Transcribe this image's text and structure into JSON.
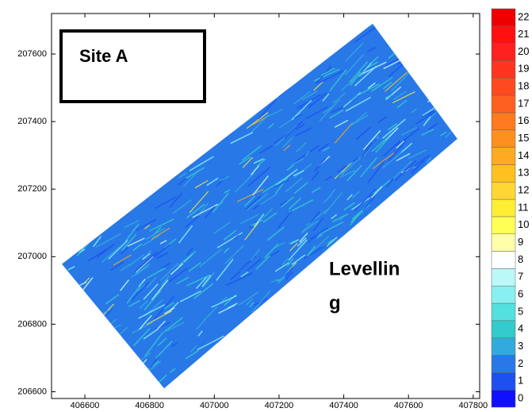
{
  "chart_data": {
    "type": "contour",
    "xlim": [
      406497,
      407820
    ],
    "ylim": [
      206580,
      207720
    ],
    "xticks": [
      406600,
      406800,
      407000,
      407200,
      407400,
      407600,
      407800
    ],
    "yticks": [
      206600,
      206800,
      207000,
      207200,
      207400,
      207600
    ],
    "field_outline": {
      "x": [
        406529,
        407489,
        407751,
        406845
      ],
      "y": [
        206978,
        207690,
        207349,
        206610
      ]
    },
    "annotations": [
      "Site A",
      "Levellin",
      "g"
    ],
    "colorbar": {
      "lim": [
        0,
        23
      ],
      "ticks": [
        0,
        1,
        2,
        3,
        4,
        5,
        6,
        7,
        8,
        9,
        10,
        11,
        12,
        13,
        14,
        15,
        16,
        17,
        18,
        19,
        20,
        21,
        22
      ],
      "colors": [
        "#1010ff",
        "#1e50f0",
        "#2878e8",
        "#33aadd",
        "#33cccc",
        "#55e0e0",
        "#88f0f0",
        "#bbf8f8",
        "#ffffff",
        "#ffffaa",
        "#ffff55",
        "#ffee33",
        "#ffd633",
        "#ffc020",
        "#ffaa20",
        "#ff9020",
        "#ff7a20",
        "#ff6020",
        "#ff4a20",
        "#ff3520",
        "#ff2020",
        "#ff1010",
        "#ee0000"
      ]
    }
  }
}
